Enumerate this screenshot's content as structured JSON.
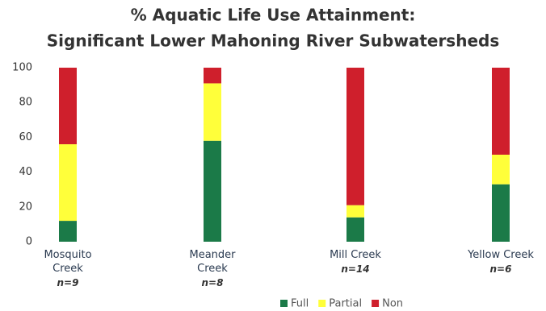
{
  "chart_data": {
    "type": "stacked_bar",
    "title": "% Aquatic Life Use Attainment:",
    "subtitle": "Significant Lower Mahoning River Subwatersheds",
    "categories": [
      "Mosquito Creek",
      "Meander Creek",
      "Mill Creek",
      "Yellow Creek"
    ],
    "sample_sizes": [
      "n=9",
      "n=8",
      "n=14",
      "n=6"
    ],
    "series": [
      {
        "name": "Full",
        "color": "#1b7a48",
        "values": [
          12,
          58,
          14,
          33
        ]
      },
      {
        "name": "Partial",
        "color": "#ffff3a",
        "values": [
          44,
          33,
          7,
          17
        ]
      },
      {
        "name": "Non",
        "color": "#cf1f2c",
        "values": [
          44,
          9,
          79,
          50
        ]
      }
    ],
    "ylim": [
      0,
      100
    ],
    "yticks": [
      0,
      20,
      40,
      60,
      80,
      100
    ],
    "grid": false
  }
}
